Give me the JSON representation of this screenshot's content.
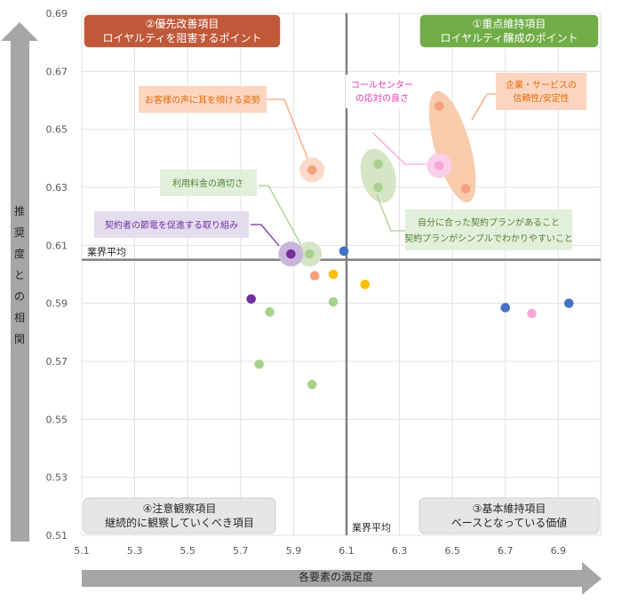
{
  "chart_data": {
    "type": "scatter",
    "xlabel": "各要素の満足度",
    "ylabel": "推奨度との相関",
    "xlim": [
      5.1,
      7.06
    ],
    "ylim": [
      0.51,
      0.69
    ],
    "xticks": [
      "5.1",
      "5.3",
      "5.5",
      "5.7",
      "5.9",
      "6.1",
      "6.3",
      "6.5",
      "6.7",
      "6.9"
    ],
    "yticks": [
      "0.51",
      "0.53",
      "0.55",
      "0.57",
      "0.59",
      "0.61",
      "0.63",
      "0.65",
      "0.67",
      "0.69"
    ],
    "avg_x": 6.1,
    "avg_y": 0.605,
    "avg_x_label": "業界平均",
    "avg_y_label": "業界平均",
    "quadrants": [
      {
        "id": "q1",
        "title": "①重点維持項目",
        "subtitle": "ロイヤルティ醸成のポイント",
        "fill": "#70AD47",
        "text": "#ffffff"
      },
      {
        "id": "q2",
        "title": "②優先改善項目",
        "subtitle": "ロイヤルティを阻害するポイント",
        "fill": "#C0583A",
        "text": "#ffffff"
      },
      {
        "id": "q3",
        "title": "③基本維持項目",
        "subtitle": "ベースとなっている価値",
        "fill": "#E7E6E6",
        "text": "#262626"
      },
      {
        "id": "q4",
        "title": "④注意観察項目",
        "subtitle": "継続的に観察していくべき項目",
        "fill": "#E7E6E6",
        "text": "#262626"
      }
    ],
    "points": [
      {
        "x": 5.97,
        "y": 0.636,
        "color": "#F4A17C",
        "halo": "#FBD9C8"
      },
      {
        "x": 6.45,
        "y": 0.658,
        "color": "#F4A17C"
      },
      {
        "x": 6.55,
        "y": 0.6295,
        "color": "#F4A17C"
      },
      {
        "x": 6.45,
        "y": 0.6375,
        "color": "#F9A7D9",
        "halo": "#FBCFEA"
      },
      {
        "x": 6.22,
        "y": 0.638,
        "color": "#A9D18E"
      },
      {
        "x": 6.22,
        "y": 0.63,
        "color": "#A9D18E"
      },
      {
        "x": 5.96,
        "y": 0.607,
        "color": "#A9D18E",
        "halo": "#D5E5C6"
      },
      {
        "x": 5.89,
        "y": 0.607,
        "color": "#7030A0",
        "halo": "#C9B5D9"
      },
      {
        "x": 6.09,
        "y": 0.608,
        "color": "#4472C4"
      },
      {
        "x": 5.98,
        "y": 0.5995,
        "color": "#F4A17C"
      },
      {
        "x": 6.05,
        "y": 0.6,
        "color": "#FFC000"
      },
      {
        "x": 6.17,
        "y": 0.5965,
        "color": "#FFC000"
      },
      {
        "x": 6.05,
        "y": 0.5905,
        "color": "#A9D18E"
      },
      {
        "x": 5.74,
        "y": 0.5915,
        "color": "#7030A0"
      },
      {
        "x": 5.81,
        "y": 0.587,
        "color": "#A9D18E"
      },
      {
        "x": 5.77,
        "y": 0.569,
        "color": "#A9D18E"
      },
      {
        "x": 5.97,
        "y": 0.562,
        "color": "#A9D18E"
      },
      {
        "x": 6.7,
        "y": 0.5885,
        "color": "#4472C4"
      },
      {
        "x": 6.8,
        "y": 0.5865,
        "color": "#F9A7D9"
      },
      {
        "x": 6.94,
        "y": 0.59,
        "color": "#4472C4"
      }
    ],
    "annotations": [
      {
        "id": "a1",
        "lines": [
          "お客様の声に耳を傾ける姿勢"
        ],
        "fill": "#FBD5C0",
        "text": "#E46C0A",
        "border": "#FBD5C0"
      },
      {
        "id": "a2",
        "lines": [
          "コールセンター",
          "の応対の良さ"
        ],
        "fill": "#FFFFFF",
        "text": "#E935B0",
        "border": "#FFFFFF"
      },
      {
        "id": "a3",
        "lines": [
          "企業・サービスの",
          "信頼性/安定性"
        ],
        "fill": "#FBD5C0",
        "text": "#E46C0A",
        "border": "#FBD5C0"
      },
      {
        "id": "a4",
        "lines": [
          "利用料金の適切さ"
        ],
        "fill": "#E2EFDA",
        "text": "#538135",
        "border": "#E2EFDA"
      },
      {
        "id": "a5",
        "lines": [
          "契約者の節電を促進する取り組み"
        ],
        "fill": "#E4DCEF",
        "text": "#7030A0",
        "border": "#E4DCEF"
      },
      {
        "id": "a6",
        "lines": [
          "自分に合った契約プランがあること",
          "契約プランがシンプルでわかりやすいこと"
        ],
        "fill": "#E2EFDA",
        "text": "#538135",
        "border": "#E2EFDA"
      }
    ],
    "highlights": [
      {
        "cx": 6.5,
        "cy": 0.644,
        "rx": 20,
        "ry": 65,
        "rot": -16,
        "fill": "#F8CBAD"
      },
      {
        "cx": 6.22,
        "cy": 0.634,
        "rx": 19,
        "ry": 31,
        "rot": -15,
        "fill": "#D5E5C6"
      }
    ]
  }
}
